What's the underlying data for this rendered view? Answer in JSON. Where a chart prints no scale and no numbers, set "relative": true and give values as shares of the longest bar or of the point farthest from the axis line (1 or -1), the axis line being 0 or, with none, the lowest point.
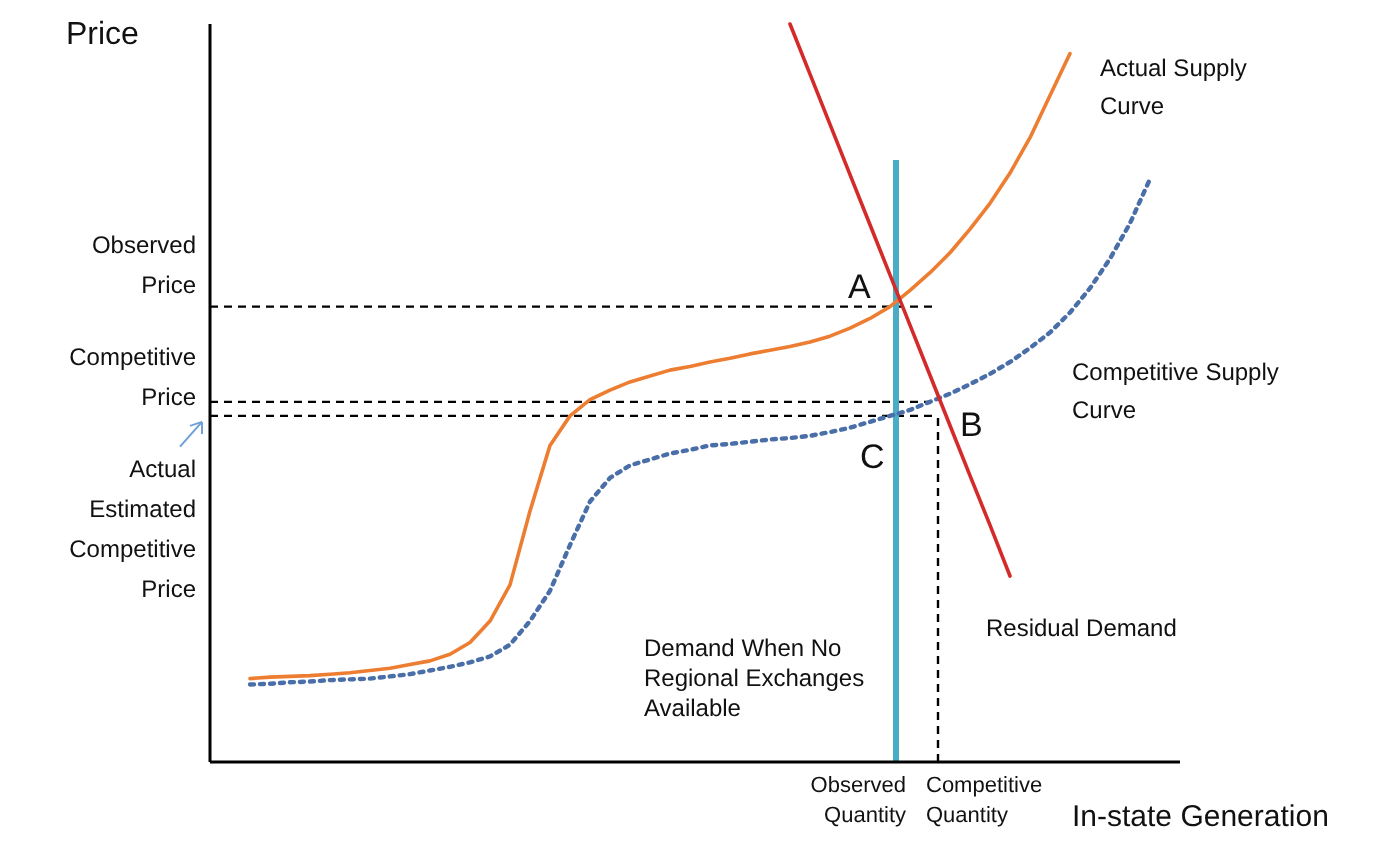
{
  "chart_data": {
    "type": "line",
    "relative": true,
    "xlabel": "In-state Generation",
    "ylabel": "Price",
    "legend": false,
    "categories": [
      null,
      null,
      null,
      null,
      null,
      null,
      null,
      null,
      null,
      null,
      null,
      null,
      null,
      null,
      null,
      null,
      null,
      null,
      null,
      null,
      null,
      null,
      null,
      null,
      null,
      null,
      null,
      null,
      null,
      null,
      null,
      null,
      null,
      null,
      null,
      null,
      null,
      null,
      null,
      null,
      null,
      null,
      null,
      null,
      null,
      null,
      null,
      null,
      null
    ],
    "series": [
      {
        "name": "Actual Supply Curve",
        "color": "#ed7d31",
        "line_style": "solid",
        "values": [
          null,
          null,
          0.113,
          0.115,
          0.116,
          0.117,
          0.119,
          0.121,
          0.124,
          0.127,
          0.132,
          0.137,
          0.146,
          0.162,
          0.191,
          0.24,
          0.34,
          0.429,
          0.469,
          0.491,
          0.504,
          0.515,
          0.523,
          0.531,
          0.536,
          0.542,
          0.547,
          0.553,
          0.558,
          0.563,
          0.569,
          0.577,
          0.588,
          0.601,
          0.617,
          0.639,
          0.663,
          0.69,
          0.722,
          0.757,
          0.798,
          0.846,
          0.903,
          0.96,
          null,
          null,
          null,
          null,
          null
        ]
      },
      {
        "name": "Competitive Supply Curve",
        "color": "#4a6ea8",
        "line_style": "dotted",
        "values": [
          null,
          null,
          0.105,
          0.106,
          0.108,
          0.109,
          0.111,
          0.112,
          0.113,
          0.116,
          0.119,
          0.124,
          0.129,
          0.135,
          0.143,
          0.159,
          0.191,
          0.232,
          0.294,
          0.353,
          0.385,
          0.402,
          0.41,
          0.418,
          0.423,
          0.429,
          0.431,
          0.434,
          0.437,
          0.439,
          0.442,
          0.447,
          0.453,
          0.461,
          0.469,
          0.477,
          0.488,
          0.499,
          0.512,
          0.526,
          0.542,
          0.561,
          0.582,
          0.609,
          0.642,
          0.682,
          0.73,
          0.79,
          null
        ]
      },
      {
        "name": "Residual Demand",
        "color": "#d42a2a",
        "line_style": "solid",
        "values": [
          null,
          null,
          null,
          null,
          null,
          null,
          null,
          null,
          null,
          null,
          null,
          null,
          null,
          null,
          null,
          null,
          null,
          null,
          null,
          null,
          null,
          null,
          null,
          null,
          null,
          null,
          null,
          null,
          null,
          1.0,
          0.932,
          0.864,
          0.796,
          0.728,
          0.66,
          0.592,
          0.524,
          0.456,
          0.388,
          0.321,
          0.252,
          null,
          null,
          null,
          null,
          null,
          null,
          null,
          null
        ]
      }
    ],
    "ref_lines": [
      {
        "axis": "y",
        "value": 0.617,
        "label": "Observed Price",
        "color": "#000000",
        "line_style": "dashed"
      },
      {
        "axis": "y",
        "value": 0.488,
        "label": "Competitive Price",
        "color": "#000000",
        "line_style": "dashed"
      },
      {
        "axis": "y",
        "value": 0.469,
        "label": "Actual Estimated Competitive Price",
        "color": "#000000",
        "line_style": "dashed"
      }
    ],
    "annotations": [
      "A",
      "B",
      "C",
      "Observed Quantity",
      "Competitive Quantity",
      "Demand When No Regional Exchanges Available"
    ]
  }
}
